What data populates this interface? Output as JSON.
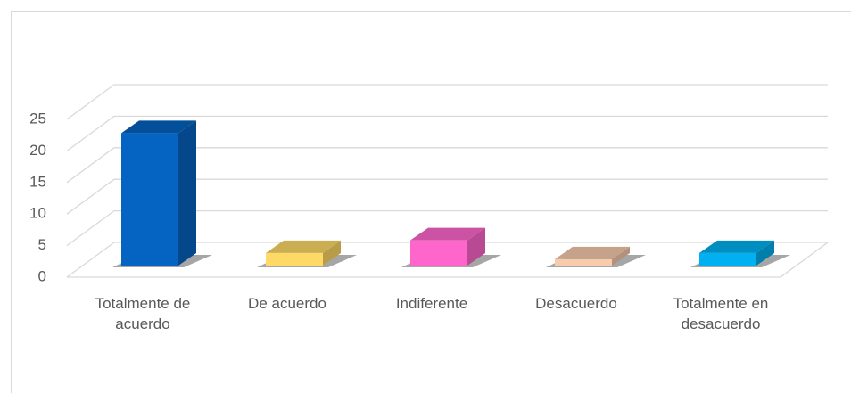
{
  "chart_data": {
    "type": "bar3d",
    "categories": [
      "Totalmente de acuerdo",
      "De acuerdo",
      "Indiferente",
      "Desacuerdo",
      "Totalmente en desacuerdo"
    ],
    "values": [
      21,
      2,
      4,
      1,
      2
    ],
    "colors": [
      "#0563c1",
      "#ffd966",
      "#ff66cc",
      "#f8cbad",
      "#00b0f0"
    ],
    "ylim": [
      0,
      25
    ],
    "yticks": [
      0,
      5,
      10,
      15,
      20,
      25
    ],
    "grid": true
  }
}
